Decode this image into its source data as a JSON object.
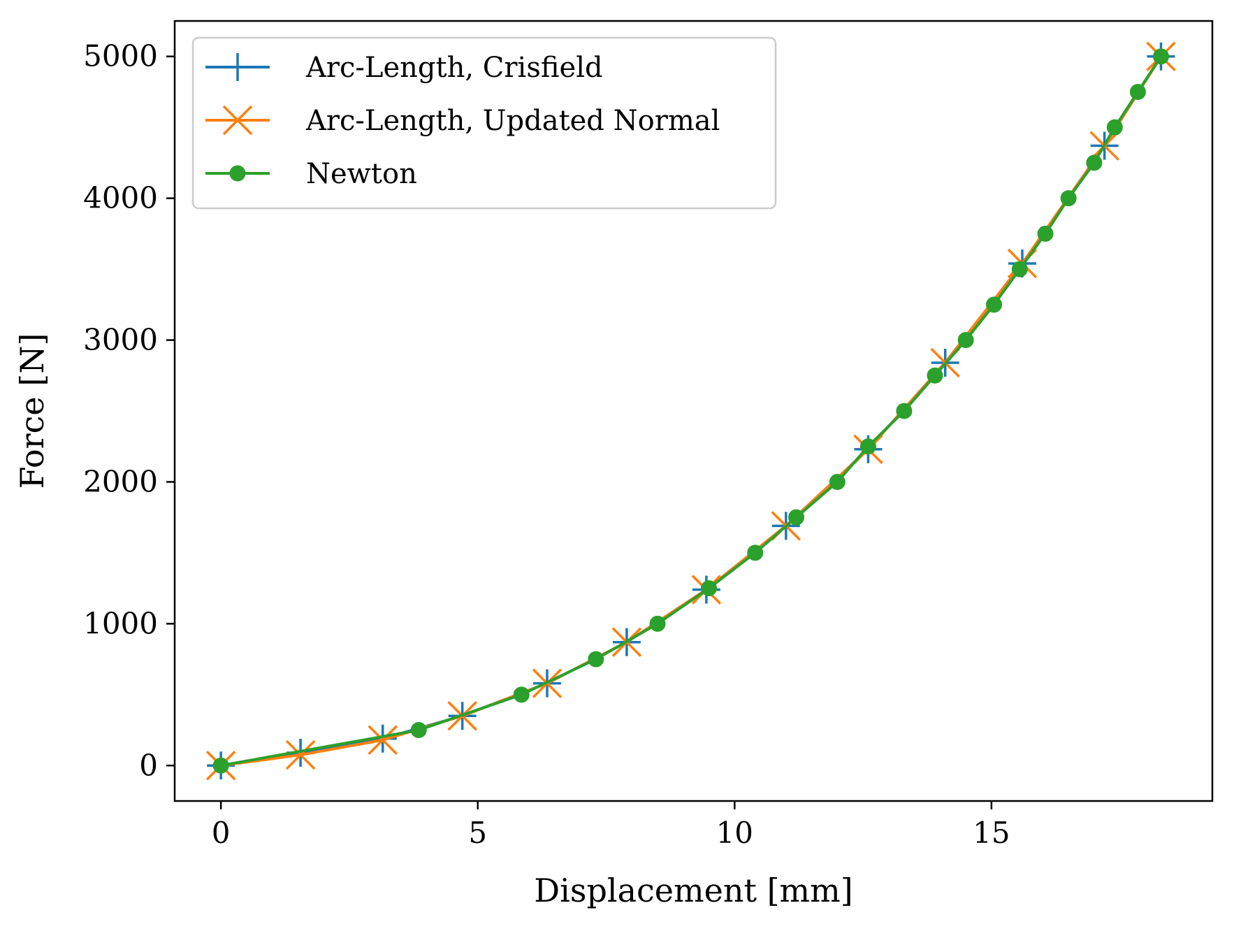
{
  "chart_data": {
    "type": "line",
    "xlabel": "Displacement [mm]",
    "ylabel": "Force [N]",
    "xlim": [
      -0.9,
      19.3
    ],
    "ylim": [
      -250,
      5250
    ],
    "xticks": [
      0,
      5,
      10,
      15
    ],
    "yticks": [
      0,
      1000,
      2000,
      3000,
      4000,
      5000
    ],
    "grid": false,
    "legend_position": "top-left",
    "series": [
      {
        "name": "Arc-Length, Crisfield",
        "color": "#1f77b4",
        "marker": "plus",
        "x": [
          0,
          1.55,
          3.15,
          4.7,
          6.35,
          7.9,
          9.45,
          11.0,
          12.6,
          14.1,
          15.6,
          17.2,
          18.3
        ],
        "y": [
          0,
          90,
          190,
          350,
          580,
          870,
          1240,
          1690,
          2230,
          2840,
          3540,
          4370,
          5000
        ]
      },
      {
        "name": "Arc-Length, Updated Normal",
        "color": "#ff7f0e",
        "marker": "x",
        "x": [
          0,
          1.55,
          3.15,
          4.7,
          6.35,
          7.9,
          9.45,
          11.0,
          12.6,
          14.1,
          15.6,
          17.2,
          18.3
        ],
        "y": [
          0,
          75,
          180,
          350,
          580,
          870,
          1240,
          1690,
          2230,
          2840,
          3540,
          4370,
          5000
        ]
      },
      {
        "name": "Newton",
        "color": "#2ca02c",
        "marker": "circle",
        "x": [
          0,
          3.85,
          5.85,
          7.3,
          8.5,
          9.5,
          10.4,
          11.2,
          12.0,
          12.6,
          13.3,
          13.9,
          14.5,
          15.05,
          15.55,
          16.05,
          16.5,
          17.0,
          17.4,
          17.85,
          18.3
        ],
        "y": [
          0,
          250,
          500,
          750,
          1000,
          1250,
          1500,
          1750,
          2000,
          2250,
          2500,
          2750,
          3000,
          3250,
          3500,
          3750,
          4000,
          4250,
          4500,
          4750,
          5000
        ]
      }
    ]
  }
}
